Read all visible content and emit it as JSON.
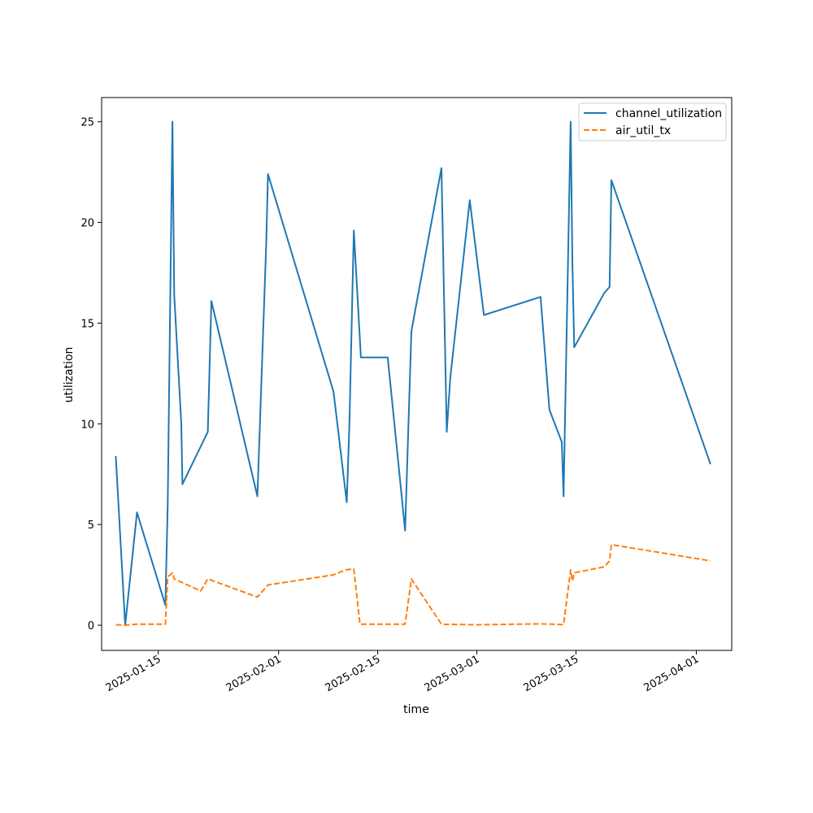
{
  "chart_data": {
    "type": "line",
    "title": "",
    "xlabel": "time",
    "ylabel": "utilization",
    "xlim": [
      "2025-01-07",
      "2025-04-06"
    ],
    "ylim": [
      -1.25,
      26.2
    ],
    "x_ticks": [
      "2025-01-15",
      "2025-02-01",
      "2025-02-15",
      "2025-03-01",
      "2025-03-15",
      "2025-04-01"
    ],
    "y_ticks": [
      0,
      5,
      10,
      15,
      20,
      25
    ],
    "grid": false,
    "legend_position": "top-right",
    "series": [
      {
        "name": "channel_utilization",
        "color": "#1f77b4",
        "style": "solid",
        "points": [
          [
            "2025-01-09",
            8.4
          ],
          [
            "2025-01-10 08:00",
            0.0
          ],
          [
            "2025-01-12",
            5.6
          ],
          [
            "2025-01-16",
            1.0
          ],
          [
            "2025-01-16 08:00",
            6.0
          ],
          [
            "2025-01-17",
            25.0
          ],
          [
            "2025-01-17 06:00",
            16.4
          ],
          [
            "2025-01-18 06:00",
            10.0
          ],
          [
            "2025-01-18 10:00",
            7.0
          ],
          [
            "2025-01-22",
            9.6
          ],
          [
            "2025-01-22 12:00",
            16.1
          ],
          [
            "2025-01-29",
            6.4
          ],
          [
            "2025-01-30 06:00",
            19.0
          ],
          [
            "2025-01-30 12:00",
            22.4
          ],
          [
            "2025-02-08 18:00",
            11.6
          ],
          [
            "2025-02-10 15:00",
            6.1
          ],
          [
            "2025-02-11",
            10.0
          ],
          [
            "2025-02-11 15:00",
            19.6
          ],
          [
            "2025-02-12 15:00",
            13.3
          ],
          [
            "2025-02-16 10:00",
            13.3
          ],
          [
            "2025-02-18 21:00",
            4.7
          ],
          [
            "2025-02-19 18:00",
            14.6
          ],
          [
            "2025-02-24",
            22.7
          ],
          [
            "2025-02-24 18:00",
            9.6
          ],
          [
            "2025-02-25 06:00",
            12.3
          ],
          [
            "2025-02-28",
            21.1
          ],
          [
            "2025-03-02",
            15.4
          ],
          [
            "2025-03-10",
            16.3
          ],
          [
            "2025-03-11 06:00",
            10.7
          ],
          [
            "2025-03-13",
            9.1
          ],
          [
            "2025-03-13 06:00",
            6.4
          ],
          [
            "2025-03-14 06:00",
            25.0
          ],
          [
            "2025-03-14 12:00",
            17.9
          ],
          [
            "2025-03-14 18:00",
            13.8
          ],
          [
            "2025-03-19",
            16.5
          ],
          [
            "2025-03-19 18:00",
            16.8
          ],
          [
            "2025-03-20",
            22.1
          ],
          [
            "2025-04-03",
            8.0
          ]
        ]
      },
      {
        "name": "air_util_tx",
        "color": "#ff7f0e",
        "style": "dashed",
        "points": [
          [
            "2025-01-09",
            0.02
          ],
          [
            "2025-01-10 08:00",
            0.0
          ],
          [
            "2025-01-12",
            0.05
          ],
          [
            "2025-01-16",
            0.05
          ],
          [
            "2025-01-16 08:00",
            2.4
          ],
          [
            "2025-01-17",
            2.6
          ],
          [
            "2025-01-17 06:00",
            2.3
          ],
          [
            "2025-01-21",
            1.7
          ],
          [
            "2025-01-22",
            2.3
          ],
          [
            "2025-01-29",
            1.4
          ],
          [
            "2025-01-30 12:00",
            2.0
          ],
          [
            "2025-02-08 18:00",
            2.5
          ],
          [
            "2025-02-10 12:00",
            2.75
          ],
          [
            "2025-02-11 15:00",
            2.8
          ],
          [
            "2025-02-12 12:00",
            0.05
          ],
          [
            "2025-02-18 21:00",
            0.05
          ],
          [
            "2025-02-19 18:00",
            2.3
          ],
          [
            "2025-02-24",
            0.05
          ],
          [
            "2025-03-01",
            0.02
          ],
          [
            "2025-03-10",
            0.07
          ],
          [
            "2025-03-13 06:00",
            0.03
          ],
          [
            "2025-03-14 06:00",
            2.75
          ],
          [
            "2025-03-14 12:00",
            2.2
          ],
          [
            "2025-03-14 18:00",
            2.6
          ],
          [
            "2025-03-19",
            2.9
          ],
          [
            "2025-03-19 18:00",
            3.2
          ],
          [
            "2025-03-20",
            4.0
          ],
          [
            "2025-04-03",
            3.2
          ]
        ]
      }
    ]
  }
}
